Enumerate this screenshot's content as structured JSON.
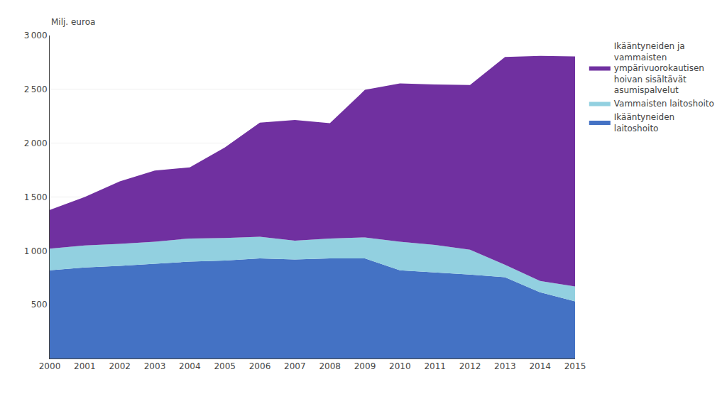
{
  "chart_data": {
    "type": "area",
    "stacked": true,
    "ylabel": "Milj. euroa",
    "x": [
      2000,
      2001,
      2002,
      2003,
      2004,
      2005,
      2006,
      2007,
      2008,
      2009,
      2010,
      2011,
      2012,
      2013,
      2014,
      2015
    ],
    "series": [
      {
        "name": "Ikääntyneiden\nlaitoshoito",
        "color": "#4472C4",
        "values": [
          820,
          845,
          860,
          880,
          900,
          910,
          930,
          920,
          930,
          930,
          820,
          800,
          780,
          755,
          615,
          530
        ]
      },
      {
        "name": "Vammaisten laitoshoito",
        "color": "#92D0E0",
        "values": [
          200,
          205,
          205,
          205,
          215,
          210,
          200,
          175,
          185,
          195,
          265,
          255,
          230,
          115,
          105,
          140
        ]
      },
      {
        "name": "Ikääntyneiden ja\nvammaisten\nympärivuorokautisen\nhoivan sisältävät\nasumispalvelut",
        "color": "#7030A0",
        "values": [
          360,
          450,
          580,
          660,
          660,
          840,
          1060,
          1120,
          1070,
          1370,
          1470,
          1490,
          1530,
          1930,
          2090,
          2135
        ]
      }
    ],
    "xlim": [
      2000,
      2015
    ],
    "xticks": [
      2000,
      2001,
      2002,
      2003,
      2004,
      2005,
      2006,
      2007,
      2008,
      2009,
      2010,
      2011,
      2012,
      2013,
      2014,
      2015
    ],
    "ylim": [
      0,
      3000
    ],
    "yticks": [
      500,
      {
        "value": 1000,
        "label": "1 000"
      },
      {
        "value": 1500,
        "label": "1 500"
      },
      {
        "value": 2000,
        "label": "2 000"
      },
      {
        "value": 2500,
        "label": "2 500"
      },
      {
        "value": 3000,
        "label": "3 000"
      }
    ],
    "grid": true,
    "legend": "right"
  }
}
